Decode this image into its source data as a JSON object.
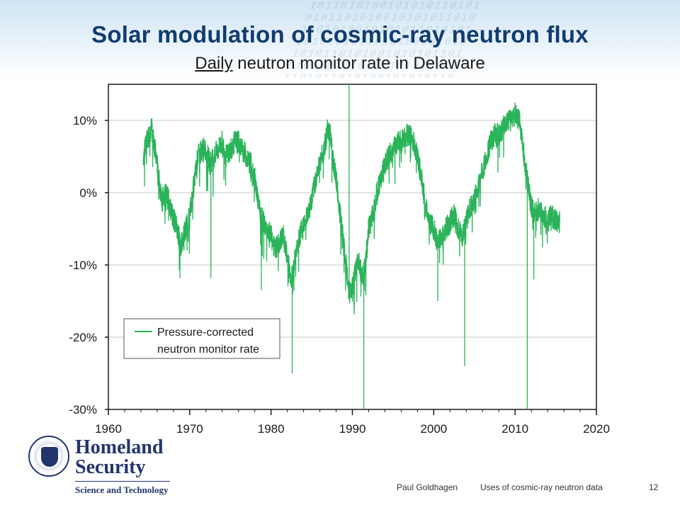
{
  "slide": {
    "title": "Solar modulation of cosmic-ray neutron flux",
    "subtitle_underlined": "Daily",
    "subtitle_rest": " neutron monitor rate in Delaware"
  },
  "footer": {
    "author": "Paul Goldhagen",
    "talk": "Uses of cosmic-ray neutron data",
    "page_number": "12"
  },
  "logo": {
    "org_line1": "Homeland",
    "org_line2": "Security",
    "org_line3": "Science and Technology"
  },
  "colors": {
    "series": "#2bb35a",
    "title": "#123c6e",
    "grid": "#c8c8c8"
  },
  "chart_data": {
    "type": "line",
    "xlim": [
      1960,
      2020
    ],
    "ylim": [
      -30,
      15
    ],
    "x_ticks": [
      1960,
      1970,
      1980,
      1990,
      2000,
      2010,
      2020
    ],
    "x_tick_labels": [
      "1960",
      "1970",
      "1980",
      "1990",
      "2000",
      "2010",
      "2020"
    ],
    "y_ticks": [
      10,
      0,
      -10,
      -20,
      -30
    ],
    "y_tick_labels": [
      "10%",
      "0%",
      "-10%",
      "-20%",
      "-30%"
    ],
    "grid": "horizontal",
    "legend_position": "lower-left",
    "legend_lines": [
      "Pressure-corrected",
      "neutron monitor rate"
    ],
    "series": [
      {
        "name": "Pressure-corrected neutron monitor rate",
        "x": [
          1964.3,
          1964.7,
          1965.0,
          1965.3,
          1965.6,
          1966.0,
          1966.3,
          1966.6,
          1967.0,
          1967.4,
          1967.8,
          1968.2,
          1968.6,
          1969.0,
          1969.5,
          1970.0,
          1970.5,
          1971.0,
          1971.5,
          1972.0,
          1972.5,
          1973.0,
          1973.5,
          1974.0,
          1974.5,
          1975.0,
          1975.5,
          1976.0,
          1976.5,
          1977.0,
          1977.5,
          1978.0,
          1978.5,
          1979.0,
          1979.5,
          1980.0,
          1980.5,
          1981.0,
          1981.5,
          1982.0,
          1982.5,
          1983.0,
          1983.5,
          1984.0,
          1984.5,
          1985.0,
          1985.5,
          1986.0,
          1986.5,
          1987.0,
          1987.3,
          1987.7,
          1988.0,
          1988.4,
          1988.8,
          1989.2,
          1989.6,
          1990.0,
          1990.4,
          1990.8,
          1991.2,
          1991.6,
          1992.0,
          1992.5,
          1993.0,
          1993.5,
          1994.0,
          1994.5,
          1995.0,
          1995.5,
          1996.0,
          1996.5,
          1997.0,
          1997.5,
          1998.0,
          1998.5,
          1999.0,
          1999.5,
          2000.0,
          2000.5,
          2001.0,
          2001.5,
          2002.0,
          2002.5,
          2003.0,
          2003.5,
          2004.0,
          2004.5,
          2005.0,
          2005.5,
          2006.0,
          2006.5,
          2007.0,
          2007.5,
          2008.0,
          2008.5,
          2009.0,
          2009.5,
          2010.0,
          2010.5,
          2011.0,
          2011.5,
          2012.0,
          2012.5,
          2013.0,
          2013.5,
          2014.0,
          2014.5,
          2015.0,
          2015.5
        ],
        "y": [
          5,
          7,
          8,
          9,
          7,
          4,
          1,
          -1,
          0,
          -1,
          -3,
          -4,
          -6,
          -7,
          -5,
          -3,
          1,
          5,
          6,
          6,
          4,
          5,
          6,
          7,
          5,
          6,
          7,
          7,
          6,
          5,
          4,
          2,
          -2,
          -4,
          -5,
          -6,
          -8,
          -7,
          -6,
          -9,
          -12,
          -9,
          -6,
          -4,
          -3,
          -1,
          2,
          4,
          6,
          9,
          8,
          4,
          2,
          -2,
          -6,
          -10,
          -14,
          -13,
          -11,
          -9,
          -12,
          -10,
          -5,
          -3,
          0,
          2,
          4,
          5,
          6,
          7,
          7,
          8,
          8,
          7,
          5,
          2,
          -2,
          -4,
          -5,
          -7,
          -6,
          -5,
          -4,
          -3,
          -5,
          -6,
          -4,
          -2,
          -1,
          1,
          3,
          5,
          7,
          8,
          8,
          9,
          10,
          10,
          11,
          10,
          6,
          2,
          -2,
          -3,
          -2,
          -3,
          -4,
          -3,
          -4,
          -4
        ]
      }
    ],
    "spikes": [
      {
        "x": 1968.8,
        "y": -11.8
      },
      {
        "x": 1972.6,
        "y": -11.8
      },
      {
        "x": 1978.8,
        "y": -13.5
      },
      {
        "x": 1982.6,
        "y": -25
      },
      {
        "x": 1989.6,
        "y": 15
      },
      {
        "x": 1991.4,
        "y": -30
      },
      {
        "x": 2000.5,
        "y": -15
      },
      {
        "x": 2003.8,
        "y": -24
      },
      {
        "x": 2011.5,
        "y": -30
      },
      {
        "x": 2012.3,
        "y": -12
      }
    ]
  }
}
